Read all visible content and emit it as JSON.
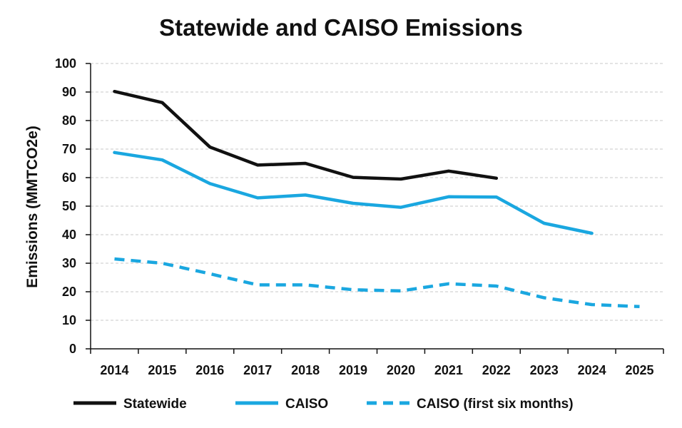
{
  "chart_data": {
    "type": "line",
    "title": "Statewide and CAISO Emissions",
    "xlabel": "",
    "ylabel": "Emissions (MMTCO2e)",
    "ylim": [
      0,
      100
    ],
    "y_ticks": [
      0,
      10,
      20,
      30,
      40,
      50,
      60,
      70,
      80,
      90,
      100
    ],
    "categories": [
      "2014",
      "2015",
      "2016",
      "2017",
      "2018",
      "2019",
      "2020",
      "2021",
      "2022",
      "2023",
      "2024",
      "2025"
    ],
    "grid": "horizontal dashed",
    "legend_position": "bottom",
    "series": [
      {
        "name": "Statewide",
        "color": "#111111",
        "dashed": false,
        "values": [
          90.2,
          86.3,
          70.7,
          64.4,
          65.0,
          60.1,
          59.5,
          62.3,
          59.8,
          null,
          null,
          null
        ]
      },
      {
        "name": "CAISO",
        "color": "#1aa7e0",
        "dashed": false,
        "values": [
          68.8,
          66.2,
          57.9,
          52.9,
          53.9,
          51.0,
          49.6,
          53.3,
          53.2,
          44.0,
          40.5,
          null
        ]
      },
      {
        "name": "CAISO (first six months)",
        "color": "#1aa7e0",
        "dashed": true,
        "values": [
          31.5,
          30.0,
          26.3,
          22.4,
          22.4,
          20.7,
          20.3,
          22.8,
          22.0,
          17.9,
          15.5,
          14.8
        ]
      }
    ]
  }
}
